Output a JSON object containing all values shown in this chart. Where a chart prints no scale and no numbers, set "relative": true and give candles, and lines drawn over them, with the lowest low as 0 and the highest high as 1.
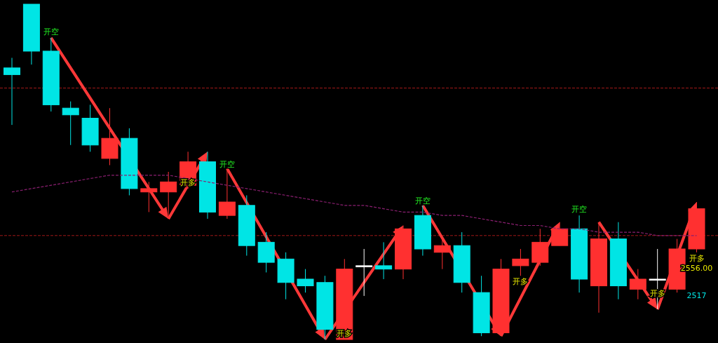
{
  "chart_data": {
    "type": "candlestick",
    "relative": true,
    "categories": [
      null,
      null,
      null,
      null,
      null,
      null,
      null,
      null,
      null,
      null,
      null,
      null,
      null,
      null,
      null,
      null,
      null,
      null,
      null,
      null,
      null,
      null,
      null,
      null,
      null,
      null,
      null,
      null,
      null,
      null,
      null,
      null,
      null,
      null,
      null,
      null
    ],
    "ohlc": [
      [
        0.81,
        0.84,
        0.64,
        0.79
      ],
      [
        1.0,
        1.0,
        0.82,
        0.86
      ],
      [
        0.86,
        0.9,
        0.68,
        0.7
      ],
      [
        0.69,
        0.71,
        0.58,
        0.67
      ],
      [
        0.66,
        0.7,
        0.56,
        0.58
      ],
      [
        0.54,
        0.69,
        0.52,
        0.6
      ],
      [
        0.6,
        0.63,
        0.43,
        0.45
      ],
      [
        0.44,
        0.47,
        0.38,
        0.45
      ],
      [
        0.44,
        0.5,
        0.36,
        0.47
      ],
      [
        0.46,
        0.56,
        0.45,
        0.53
      ],
      [
        0.53,
        0.56,
        0.36,
        0.38
      ],
      [
        0.37,
        0.51,
        0.36,
        0.41
      ],
      [
        0.4,
        0.43,
        0.25,
        0.28
      ],
      [
        0.29,
        0.32,
        0.2,
        0.23
      ],
      [
        0.24,
        0.26,
        0.12,
        0.17
      ],
      [
        0.18,
        0.21,
        0.14,
        0.16
      ],
      [
        0.17,
        0.19,
        0.0,
        0.03
      ],
      [
        0.0,
        0.24,
        0.0,
        0.21
      ],
      [
        0.22,
        0.27,
        0.13,
        0.22
      ],
      [
        0.22,
        0.29,
        0.18,
        0.21
      ],
      [
        0.21,
        0.34,
        0.18,
        0.33
      ],
      [
        0.37,
        0.4,
        0.25,
        0.27
      ],
      [
        0.26,
        0.3,
        0.21,
        0.28
      ],
      [
        0.28,
        0.32,
        0.14,
        0.17
      ],
      [
        0.14,
        0.19,
        0.01,
        0.02
      ],
      [
        0.02,
        0.24,
        0.01,
        0.21
      ],
      [
        0.22,
        0.27,
        0.19,
        0.24
      ],
      [
        0.23,
        0.33,
        0.22,
        0.29
      ],
      [
        0.28,
        0.35,
        0.28,
        0.33
      ],
      [
        0.33,
        0.37,
        0.14,
        0.18
      ],
      [
        0.16,
        0.35,
        0.08,
        0.3
      ],
      [
        0.3,
        0.35,
        0.12,
        0.16
      ],
      [
        0.15,
        0.21,
        0.12,
        0.18
      ],
      [
        0.18,
        0.27,
        0.09,
        0.18
      ],
      [
        0.15,
        0.3,
        0.14,
        0.27
      ],
      [
        0.27,
        0.41,
        0.26,
        0.39
      ]
    ],
    "colors": [
      "#00e5e5",
      "#00e5e5",
      "#00e5e5",
      "#00e5e5",
      "#00e5e5",
      "#ff3030",
      "#00e5e5",
      "#ff3030",
      "#ff3030",
      "#ff3030",
      "#00e5e5",
      "#ff3030",
      "#00e5e5",
      "#00e5e5",
      "#00e5e5",
      "#00e5e5",
      "#00e5e5",
      "#ff3030",
      "#ffffff",
      "#00e5e5",
      "#ff3030",
      "#00e5e5",
      "#ff3030",
      "#00e5e5",
      "#00e5e5",
      "#ff3030",
      "#ff3030",
      "#ff3030",
      "#ff3030",
      "#00e5e5",
      "#ff3030",
      "#00e5e5",
      "#ff3030",
      "#ffffff",
      "#ff3030",
      "#ff3030"
    ],
    "series": [
      {
        "type": "line",
        "color": "#8a1f70",
        "line_style": "dashed",
        "values": [
          0.44,
          0.45,
          0.46,
          0.47,
          0.48,
          0.49,
          0.49,
          0.49,
          0.49,
          0.48,
          0.47,
          0.46,
          0.45,
          0.44,
          0.43,
          0.42,
          0.41,
          0.4,
          0.4,
          0.39,
          0.38,
          0.38,
          0.37,
          0.37,
          0.36,
          0.35,
          0.34,
          0.34,
          0.33,
          0.33,
          0.32,
          0.32,
          0.32,
          0.31,
          0.31,
          0.31
        ]
      }
    ],
    "ref_lines": [
      {
        "axis": "y",
        "value": 0.75,
        "color": "#a01818",
        "line_style": "dashed"
      },
      {
        "axis": "y",
        "value": 0.31,
        "color": "#a01818",
        "line_style": "dashed"
      }
    ],
    "annotations": [
      "开空",
      "开多",
      "开空",
      "开多",
      "开空",
      "开多",
      "开空",
      "开多",
      "开多",
      "2556.00",
      "2517"
    ]
  }
}
